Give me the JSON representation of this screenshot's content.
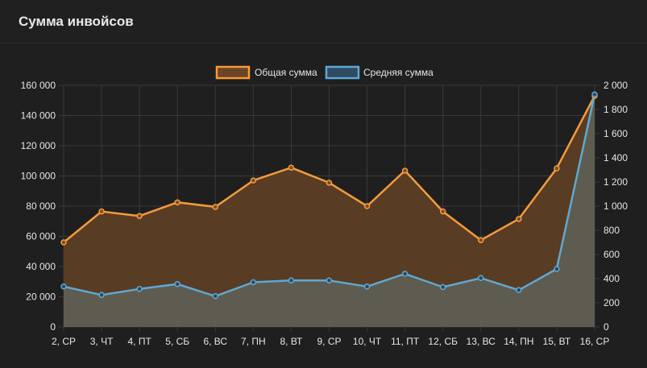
{
  "panel": {
    "title": "Сумма инвойсов"
  },
  "colors": {
    "series1_line": "#f59b3c",
    "series1_fill": "#5e3f24",
    "series2_line": "#5fa8d3",
    "series2_fill": "#5f5f55",
    "grid": "#3a3a3a",
    "background": "#1f1f1f"
  },
  "chart_data": {
    "type": "line",
    "categories": [
      "2, СР",
      "3, ЧТ",
      "4, ПТ",
      "5, СБ",
      "6, ВС",
      "7, ПН",
      "8, ВТ",
      "9, СР",
      "10, ЧТ",
      "11, ПТ",
      "12, СБ",
      "13, ВС",
      "14, ПН",
      "15, ВТ",
      "16, СР"
    ],
    "series": [
      {
        "name": "Общая сумма",
        "axis": "left",
        "values": [
          56000,
          76500,
          73500,
          82500,
          79500,
          97000,
          105500,
          95500,
          80000,
          103500,
          76500,
          57500,
          71500,
          105000,
          153000
        ]
      },
      {
        "name": "Средняя сумма",
        "axis": "right",
        "values": [
          335,
          265,
          315,
          355,
          255,
          370,
          385,
          385,
          335,
          440,
          330,
          405,
          305,
          480,
          1925
        ]
      }
    ],
    "y_left": {
      "min": 0,
      "max": 160000,
      "step": 20000,
      "tick_labels": [
        "0",
        "20 000",
        "40 000",
        "60 000",
        "80 000",
        "100 000",
        "120 000",
        "140 000",
        "160 000"
      ]
    },
    "y_right": {
      "min": 0,
      "max": 2000,
      "step": 200,
      "tick_labels": [
        "0",
        "200",
        "400",
        "600",
        "800",
        "1 000",
        "1 200",
        "1 400",
        "1 600",
        "1 800",
        "2 000"
      ]
    },
    "grid": true,
    "legend": "top-center",
    "filled": true
  }
}
